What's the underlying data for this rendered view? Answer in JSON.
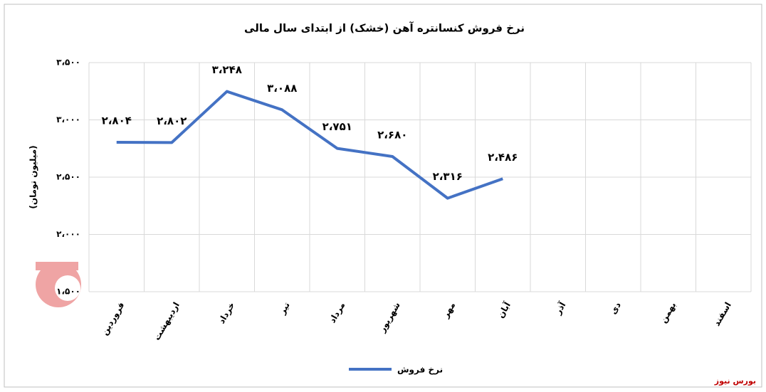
{
  "chart_data": {
    "type": "line",
    "title": "نرخ فروش کنسانتره آهن (خشک) از ابتدای سال مالی",
    "y_label": "(میلیون تومان)",
    "categories": [
      "فروردین",
      "اردیبهشت",
      "خرداد",
      "تیر",
      "مرداد",
      "شهریور",
      "مهر",
      "آبان",
      "آذر",
      "دی",
      "بهمن",
      "اسفند"
    ],
    "series": [
      {
        "name": "نرخ فروش",
        "color": "#4472c4",
        "values": [
          2804,
          2802,
          3248,
          3088,
          2751,
          2680,
          2316,
          2486,
          null,
          null,
          null,
          null
        ],
        "value_labels": [
          "۲،۸۰۴",
          "۲،۸۰۲",
          "۳،۲۴۸",
          "۳،۰۸۸",
          "۲،۷۵۱",
          "۲،۶۸۰",
          "۲،۳۱۶",
          "۲،۴۸۶",
          null,
          null,
          null,
          null
        ]
      }
    ],
    "ylim": [
      1500,
      3500
    ],
    "yticks": [
      {
        "value": 1500,
        "label": "۱،۵۰۰"
      },
      {
        "value": 2000,
        "label": "۲،۰۰۰"
      },
      {
        "value": 2500,
        "label": "۲،۵۰۰"
      },
      {
        "value": 3000,
        "label": "۳،۰۰۰"
      },
      {
        "value": 3500,
        "label": "۳،۵۰۰"
      }
    ],
    "grid": true,
    "legend": "bottom",
    "source": "بورس نیوز"
  }
}
